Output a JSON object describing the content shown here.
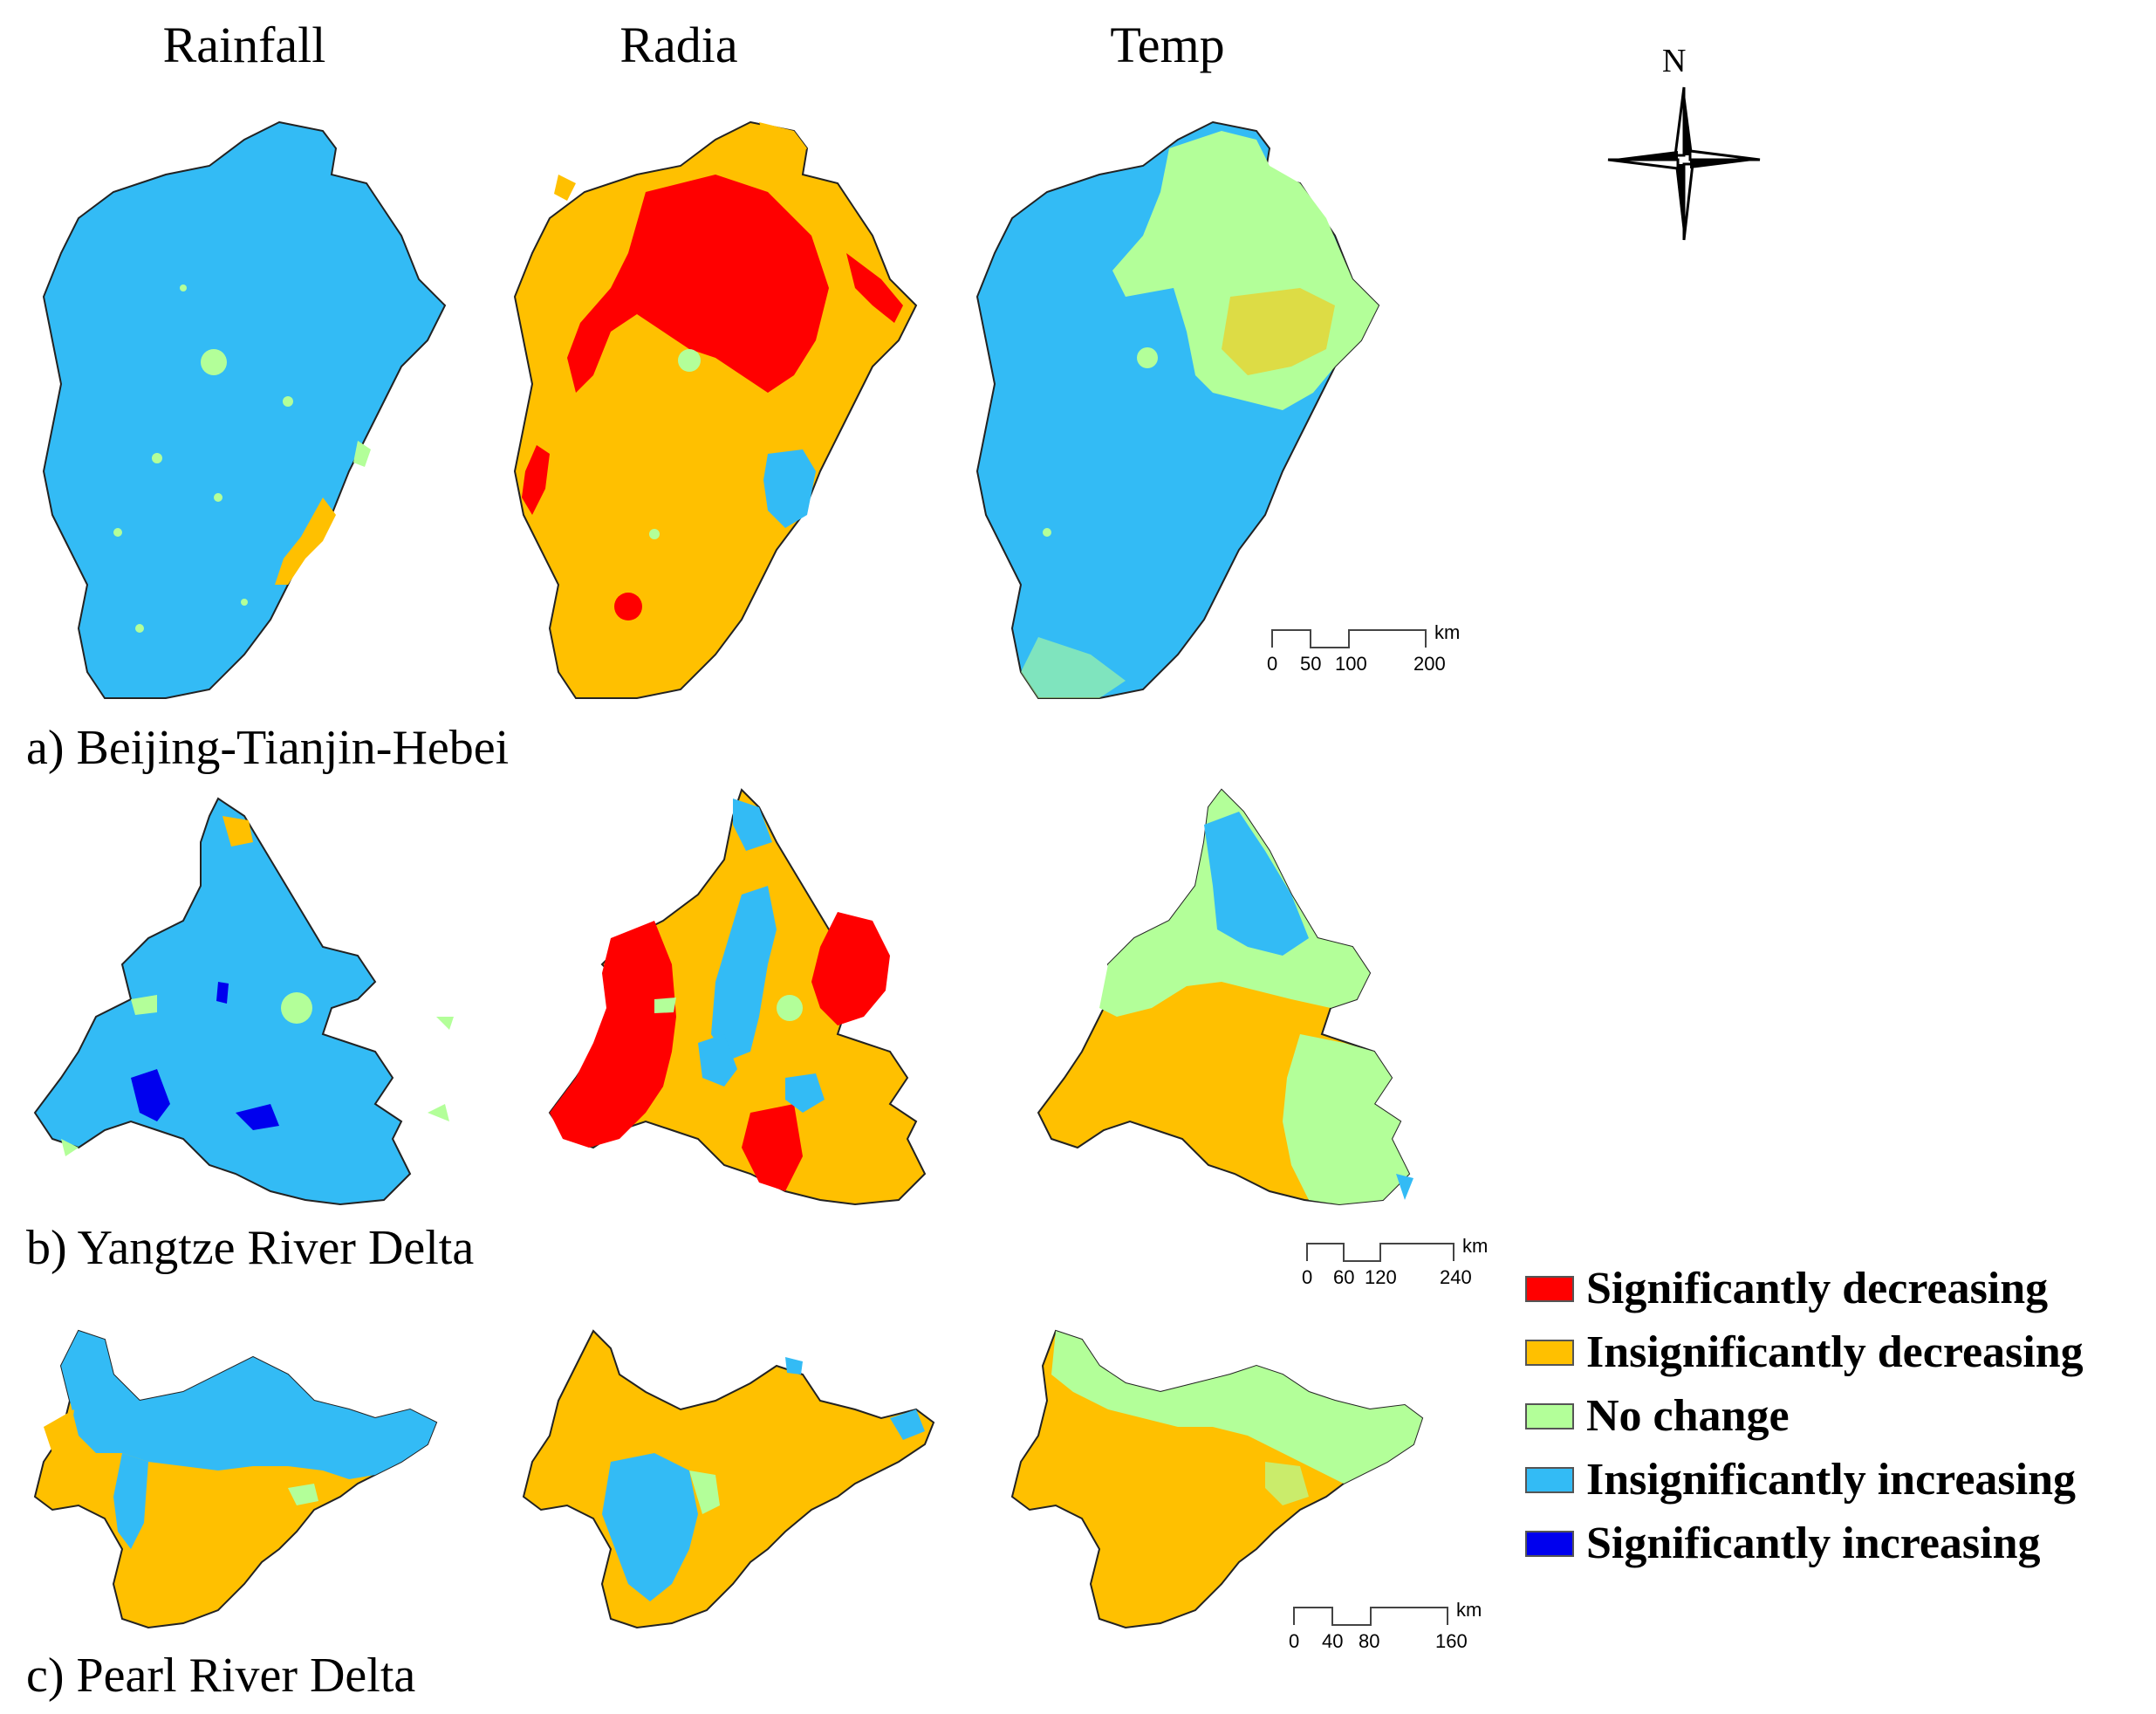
{
  "columns": [
    "Rainfall",
    "Radia",
    "Temp"
  ],
  "regions": [
    {
      "label": "a) Beijing-Tianjin-Hebei",
      "scale": {
        "ticks": [
          "0",
          "50",
          "100",
          "200"
        ],
        "unit": "km"
      }
    },
    {
      "label": "b) Yangtze River Delta",
      "scale": {
        "ticks": [
          "0",
          "60",
          "120",
          "240"
        ],
        "unit": "km"
      }
    },
    {
      "label": "c) Pearl River Delta",
      "scale": {
        "ticks": [
          "0",
          "40",
          "80",
          "160"
        ],
        "unit": "km"
      }
    }
  ],
  "compass": {
    "north_label": "N"
  },
  "legend": [
    {
      "label": "Significantly decreasing",
      "color": "#ff0000"
    },
    {
      "label": "Insignificantly decreasing",
      "color": "#ffc000"
    },
    {
      "label": "No change",
      "color": "#b3ff99"
    },
    {
      "label": "Insignificantly increasing",
      "color": "#33bbf5"
    },
    {
      "label": "Significantly increasing",
      "color": "#0000ee"
    }
  ]
}
